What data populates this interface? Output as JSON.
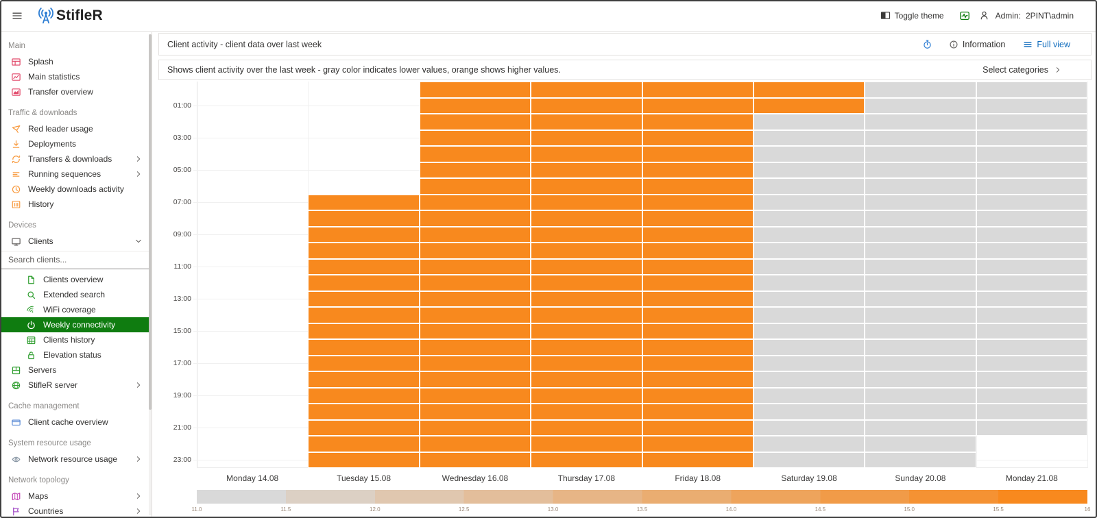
{
  "header": {
    "app_name": "StifleR",
    "toggle_theme_label": "Toggle theme",
    "admin_label": "Admin:",
    "admin_user": "2PINT\\admin"
  },
  "sidebar": {
    "search_placeholder": "Search clients...",
    "sections": [
      {
        "label": "Main",
        "items": [
          {
            "label": "Splash",
            "icon": "tiles-icon",
            "color": "#e24a6b"
          },
          {
            "label": "Main statistics",
            "icon": "chart-box-icon",
            "color": "#e24a6b"
          },
          {
            "label": "Transfer overview",
            "icon": "chart-area-icon",
            "color": "#e24a6b"
          }
        ]
      },
      {
        "label": "Traffic & downloads",
        "items": [
          {
            "label": "Red leader usage",
            "icon": "kite-icon",
            "color": "#f89a3e"
          },
          {
            "label": "Deployments",
            "icon": "download-icon",
            "color": "#f89a3e"
          },
          {
            "label": "Transfers & downloads",
            "icon": "sync-icon",
            "color": "#f89a3e",
            "chevron": "right"
          },
          {
            "label": "Running sequences",
            "icon": "list-lines-icon",
            "color": "#f89a3e",
            "chevron": "right"
          },
          {
            "label": "Weekly downloads activity",
            "icon": "clock-icon",
            "color": "#f89a3e"
          },
          {
            "label": "History",
            "icon": "history-icon",
            "color": "#f89a3e"
          }
        ]
      },
      {
        "label": "Devices",
        "items": [
          {
            "label": "Clients",
            "icon": "monitor-icon",
            "color": "#605e5c",
            "chevron": "down"
          },
          {
            "type": "search"
          },
          {
            "label": "Clients overview",
            "icon": "document-icon",
            "color": "#2f9e2f",
            "indent": true
          },
          {
            "label": "Extended search",
            "icon": "search-icon",
            "color": "#2f9e2f",
            "indent": true
          },
          {
            "label": "WiFi coverage",
            "icon": "wifi-icon",
            "color": "#2f9e2f",
            "indent": true
          },
          {
            "label": "Weekly connectivity",
            "icon": "power-icon",
            "color": "#ffffff",
            "indent": true,
            "selected": true
          },
          {
            "label": "Clients history",
            "icon": "calendar-icon",
            "color": "#2f9e2f",
            "indent": true
          },
          {
            "label": "Elevation status",
            "icon": "lock-icon",
            "color": "#2f9e2f",
            "indent": true
          },
          {
            "label": "Servers",
            "icon": "servers-icon",
            "color": "#2f9e2f"
          },
          {
            "label": "StifleR server",
            "icon": "globe-icon",
            "color": "#2f9e2f",
            "chevron": "right"
          }
        ]
      },
      {
        "label": "Cache management",
        "items": [
          {
            "label": "Client cache overview",
            "icon": "card-icon",
            "color": "#5b8bd5"
          }
        ]
      },
      {
        "label": "System resource usage",
        "items": [
          {
            "label": "Network resource usage",
            "icon": "eye-icon",
            "color": "#8896a4",
            "chevron": "right"
          }
        ]
      },
      {
        "label": "Network topology",
        "items": [
          {
            "label": "Maps",
            "icon": "map-icon",
            "color": "#c13fb4",
            "chevron": "right"
          },
          {
            "label": "Countries",
            "icon": "flag-icon",
            "color": "#a653c9",
            "chevron": "right"
          }
        ]
      }
    ]
  },
  "view": {
    "title": "Client activity - client data over last week",
    "information_label": "Information",
    "full_view_label": "Full view",
    "description": "Shows client activity over the last week - gray color indicates lower values, orange shows higher values.",
    "select_categories_label": "Select categories"
  },
  "colors": {
    "accent_blue": "#0f6cbd",
    "selected_green": "#0f7c10",
    "heat_high": "#F8891E",
    "heat_low": "#D9D9D9"
  },
  "chart_data": {
    "type": "heatmap",
    "x_categories": [
      "Monday 14.08",
      "Tuesday 15.08",
      "Wednesday 16.08",
      "Thursday 17.08",
      "Friday 18.08",
      "Saturday 19.08",
      "Sunday 20.08",
      "Monday 21.08"
    ],
    "y_axis": {
      "hours_per_day": 24,
      "tick_labels": [
        "01:00",
        "03:00",
        "05:00",
        "07:00",
        "09:00",
        "11:00",
        "13:00",
        "15:00",
        "17:00",
        "19:00",
        "21:00",
        "23:00"
      ]
    },
    "encoding": {
      "H": "high activity (orange)",
      "L": "low activity (gray)",
      "-": "no data (blank)"
    },
    "values_by_day": [
      "------------------------",
      "-------HHHHHHHHHHHHHHHHH",
      "HHHHHHHHHHHHHHHHHHHHHHHH",
      "HHHHHHHHHHHHHHHHHHHHHHHH",
      "HHHHHHHHHHHHHHHHHHHHHHHH",
      "HHLLLLLLLLLLLLLLLLLLLLLL",
      "LLLLLLLLLLLLLLLLLLLLLLLL",
      "LLLLLLLLLLLLLLLLLLLLLL--"
    ],
    "cell_colors": {
      "high": "#F8891E",
      "low": "#D9D9D9"
    },
    "colorbar": {
      "min": 11.0,
      "max": 16,
      "segments": 10,
      "tick_labels": [
        "11.0",
        "11.5",
        "12.0",
        "12.5",
        "13.0",
        "13.5",
        "14.0",
        "14.5",
        "15.0",
        "15.5",
        "16"
      ],
      "low_color": "#D9D9D9",
      "high_color": "#F8891E"
    },
    "legend_position": "bottom",
    "grid": true
  }
}
